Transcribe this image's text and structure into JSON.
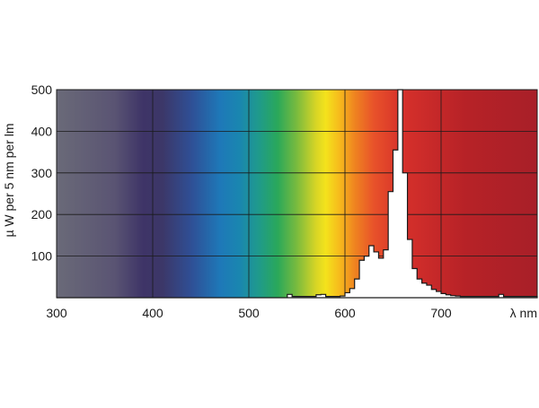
{
  "chart_data": {
    "type": "area",
    "title": "",
    "xlabel": "λ nm",
    "ylabel": "µ W per 5 nm per lm",
    "xlim": [
      300,
      800
    ],
    "ylim": [
      0,
      500
    ],
    "xticks": [
      300,
      400,
      500,
      600,
      700
    ],
    "yticks": [
      100,
      200,
      300,
      400,
      500
    ],
    "grid": true,
    "background": "visible spectrum gradient",
    "series": [
      {
        "step": 5,
        "x": [
          300,
          305,
          310,
          315,
          320,
          325,
          330,
          335,
          340,
          345,
          350,
          355,
          360,
          365,
          370,
          375,
          380,
          385,
          390,
          395,
          400,
          405,
          410,
          415,
          420,
          425,
          430,
          435,
          440,
          445,
          450,
          455,
          460,
          465,
          470,
          475,
          480,
          485,
          490,
          495,
          500,
          505,
          510,
          515,
          520,
          525,
          530,
          535,
          540,
          545,
          550,
          555,
          560,
          565,
          570,
          575,
          580,
          585,
          590,
          595,
          600,
          605,
          610,
          615,
          620,
          625,
          630,
          635,
          640,
          645,
          650,
          655,
          660,
          665,
          670,
          675,
          680,
          685,
          690,
          695,
          700,
          705,
          710,
          715,
          720,
          725,
          730,
          735,
          740,
          745,
          750,
          755,
          760,
          765,
          770,
          775,
          780,
          785,
          790,
          795
        ],
        "values": [
          0,
          0,
          0,
          0,
          0,
          0,
          0,
          0,
          0,
          0,
          0,
          0,
          0,
          0,
          0,
          0,
          0,
          0,
          0,
          0,
          0,
          0,
          0,
          0,
          0,
          0,
          0,
          0,
          0,
          0,
          0,
          0,
          0,
          0,
          0,
          0,
          0,
          0,
          0,
          0,
          0,
          0,
          0,
          0,
          0,
          0,
          0,
          0,
          8,
          3,
          3,
          3,
          3,
          3,
          7,
          8,
          3,
          3,
          3,
          4,
          12,
          22,
          45,
          90,
          100,
          125,
          110,
          95,
          115,
          255,
          355,
          500,
          300,
          140,
          70,
          45,
          35,
          30,
          20,
          15,
          10,
          7,
          5,
          4,
          3,
          3,
          3,
          3,
          3,
          3,
          3,
          3,
          8,
          3,
          3,
          3,
          3,
          3,
          3,
          3
        ]
      }
    ]
  }
}
